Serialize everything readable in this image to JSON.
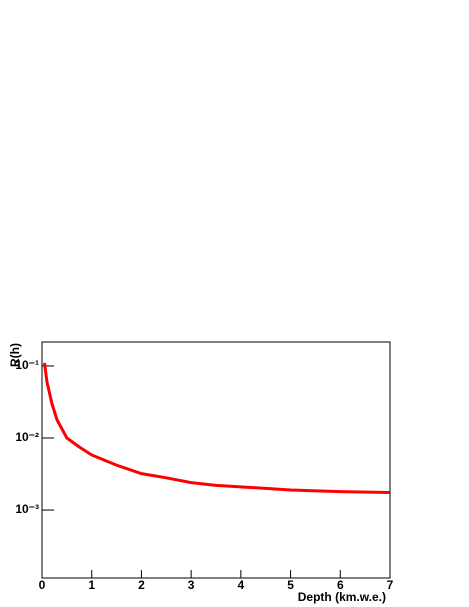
{
  "chart_data": {
    "type": "line",
    "x_label": "Depth (km.w.e.)",
    "y_label": "R(h)",
    "x": [
      0.05,
      0.1,
      0.2,
      0.3,
      0.5,
      0.75,
      1,
      1.5,
      2,
      2.5,
      3,
      3.5,
      4,
      5,
      6,
      7
    ],
    "series": [
      {
        "color": "#ff0000",
        "values": [
          0.11,
          0.06,
          0.03,
          0.018,
          0.01,
          0.0075,
          0.0058,
          0.0042,
          0.0032,
          0.0028,
          0.0024,
          0.0022,
          0.0021,
          0.0019,
          0.0018,
          0.00175
        ]
      }
    ],
    "xlim": [
      0,
      7
    ],
    "xticks": [
      0,
      1,
      2,
      3,
      4,
      5,
      6,
      7
    ],
    "ylim": [
      0.000114,
      0.215
    ],
    "ylog": true,
    "yticks": [
      {
        "value": 0.1,
        "label": "10⁻¹"
      },
      {
        "value": 0.01,
        "label": "10⁻²"
      },
      {
        "value": 0.001,
        "label": "10⁻³"
      }
    ],
    "grid": false
  }
}
